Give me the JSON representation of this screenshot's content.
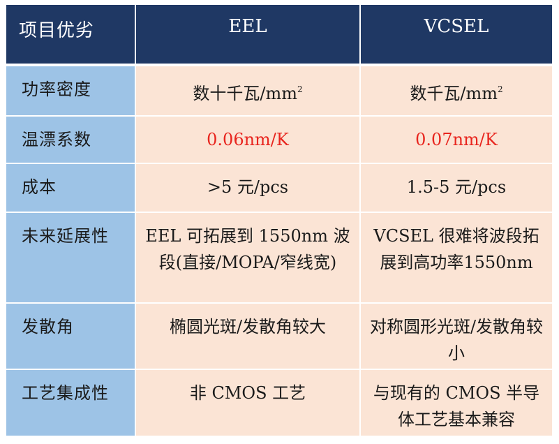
{
  "header": {
    "col0": "项目优劣",
    "col1": "EEL",
    "col2": "VCSEL"
  },
  "rows": [
    {
      "label": "功率密度",
      "eel": "数十千瓦/mm",
      "eel_sup": "2",
      "vcsel": "数千瓦/mm",
      "vcsel_sup": "2"
    },
    {
      "label": "温漂系数",
      "eel": "0.06nm/K",
      "vcsel": "0.07nm/K",
      "highlight_color": "#e8251e"
    },
    {
      "label": "成本",
      "eel": ">5 元/pcs",
      "vcsel": "1.5-5 元/pcs"
    },
    {
      "label": "未来延展性",
      "eel": "EEL 可拓展到 1550nm 波段(直接/MOPA/窄线宽)",
      "vcsel": "VCSEL 很难将波段拓展到高功率1550nm"
    },
    {
      "label": "发散角",
      "eel": "椭圆光斑/发散角较大",
      "vcsel": "对称圆形光斑/发散角较小"
    },
    {
      "label": "工艺集成性",
      "eel": "非 CMOS 工艺",
      "vcsel": "与现有的 CMOS 半导体工艺基本兼容"
    }
  ],
  "colors": {
    "header_bg": "#1f3864",
    "label_bg": "#9dc3e6",
    "cell_bg": "#fbe4d5",
    "highlight": "#e8251e"
  }
}
